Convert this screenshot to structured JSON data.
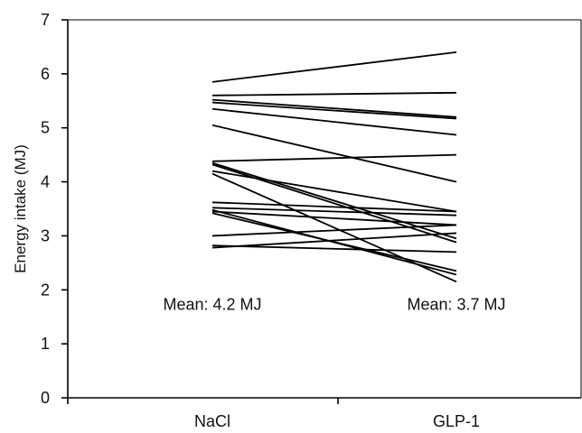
{
  "chart_data": {
    "type": "line",
    "title": "",
    "xlabel": "",
    "ylabel": "Energy intake (MJ)",
    "categories": [
      "NaCl",
      "GLP-1"
    ],
    "ylim": [
      0,
      7
    ],
    "yticks": [
      "0",
      "1",
      "2",
      "3",
      "4",
      "5",
      "6",
      "7"
    ],
    "grid": false,
    "legend": "none",
    "series": [
      {
        "values": [
          5.85,
          6.4
        ]
      },
      {
        "values": [
          5.6,
          5.65
        ]
      },
      {
        "values": [
          5.52,
          5.2
        ]
      },
      {
        "values": [
          5.47,
          5.17
        ]
      },
      {
        "values": [
          5.35,
          4.87
        ]
      },
      {
        "values": [
          5.05,
          4.0
        ]
      },
      {
        "values": [
          4.38,
          4.5
        ]
      },
      {
        "values": [
          4.35,
          2.95
        ]
      },
      {
        "values": [
          4.32,
          2.88
        ]
      },
      {
        "values": [
          4.2,
          3.45
        ]
      },
      {
        "values": [
          4.15,
          2.15
        ]
      },
      {
        "values": [
          3.62,
          3.45
        ]
      },
      {
        "values": [
          3.52,
          3.38
        ]
      },
      {
        "values": [
          3.48,
          2.28
        ]
      },
      {
        "values": [
          3.45,
          3.2
        ]
      },
      {
        "values": [
          3.42,
          2.35
        ]
      },
      {
        "values": [
          3.0,
          3.2
        ]
      },
      {
        "values": [
          2.82,
          2.7
        ]
      },
      {
        "values": [
          2.78,
          3.05
        ]
      }
    ],
    "annotations": [
      {
        "category": "NaCl",
        "text": "Mean: 4.2 MJ"
      },
      {
        "category": "GLP-1",
        "text": "Mean: 3.7 MJ"
      }
    ]
  }
}
